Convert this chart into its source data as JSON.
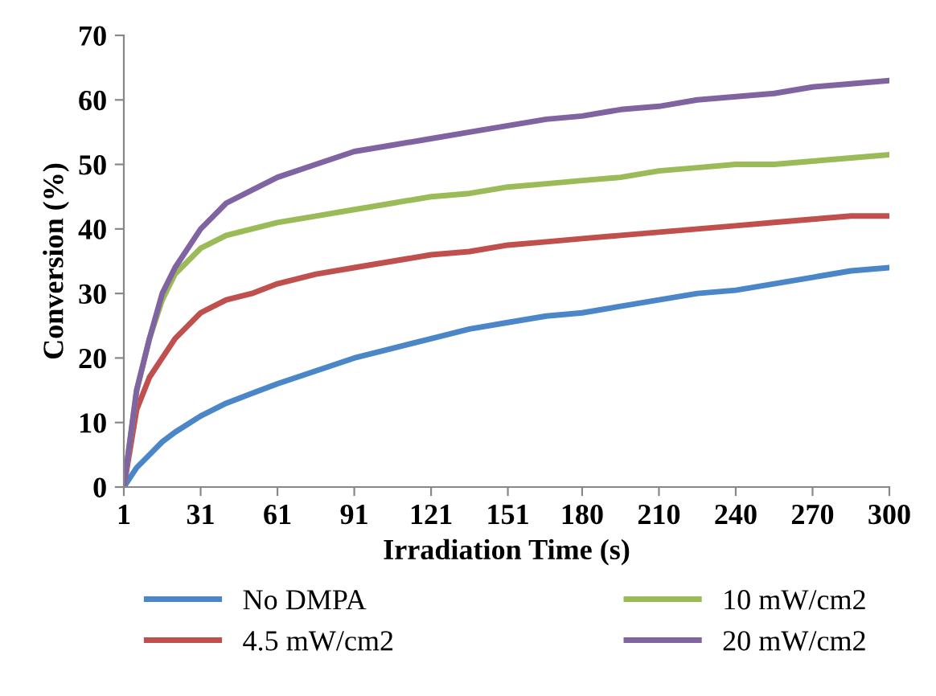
{
  "chart_data": {
    "type": "line",
    "xlabel": "Irradiation Time (s)",
    "ylabel": "Conversion (%)",
    "x": [
      1,
      6,
      11,
      16,
      21,
      31,
      41,
      51,
      61,
      76,
      91,
      106,
      121,
      136,
      151,
      166,
      180,
      195,
      210,
      225,
      240,
      255,
      270,
      285,
      300
    ],
    "series": [
      {
        "name": "No DMPA",
        "color": "#4a86c8",
        "values": [
          0,
          3,
          5,
          7,
          8.5,
          11,
          13,
          14.5,
          16,
          18,
          20,
          21.5,
          23,
          24.5,
          25.5,
          26.5,
          27,
          28,
          29,
          30,
          30.5,
          31.5,
          32.5,
          33.5,
          34
        ]
      },
      {
        "name": "4.5 mW/cm2",
        "color": "#c0504d",
        "values": [
          0,
          12,
          17,
          20,
          23,
          27,
          29,
          30,
          31.5,
          33,
          34,
          35,
          36,
          36.5,
          37.5,
          38,
          38.5,
          39,
          39.5,
          40,
          40.5,
          41,
          41.5,
          42,
          42
        ]
      },
      {
        "name": "10 mW/cm2",
        "color": "#9bbb59",
        "values": [
          0,
          15,
          23,
          29,
          33,
          37,
          39,
          40,
          41,
          42,
          43,
          44,
          45,
          45.5,
          46.5,
          47,
          47.5,
          48,
          49,
          49.5,
          50,
          50,
          50.5,
          51,
          51.5
        ]
      },
      {
        "name": "20 mW/cm2",
        "color": "#8064a2",
        "values": [
          0,
          15,
          23,
          30,
          34,
          40,
          44,
          46,
          48,
          50,
          52,
          53,
          54,
          55,
          56,
          57,
          57.5,
          58.5,
          59,
          60,
          60.5,
          61,
          62,
          62.5,
          63
        ]
      }
    ],
    "xlim": [
      1,
      300
    ],
    "xticks": [
      1,
      31,
      61,
      91,
      121,
      151,
      180,
      210,
      240,
      270,
      300
    ],
    "ylim": [
      0,
      70
    ],
    "yticks": [
      0,
      10,
      20,
      30,
      40,
      50,
      60,
      70
    ],
    "grid": false,
    "legend": "bottom",
    "marker": "none",
    "line_style": "solid"
  }
}
